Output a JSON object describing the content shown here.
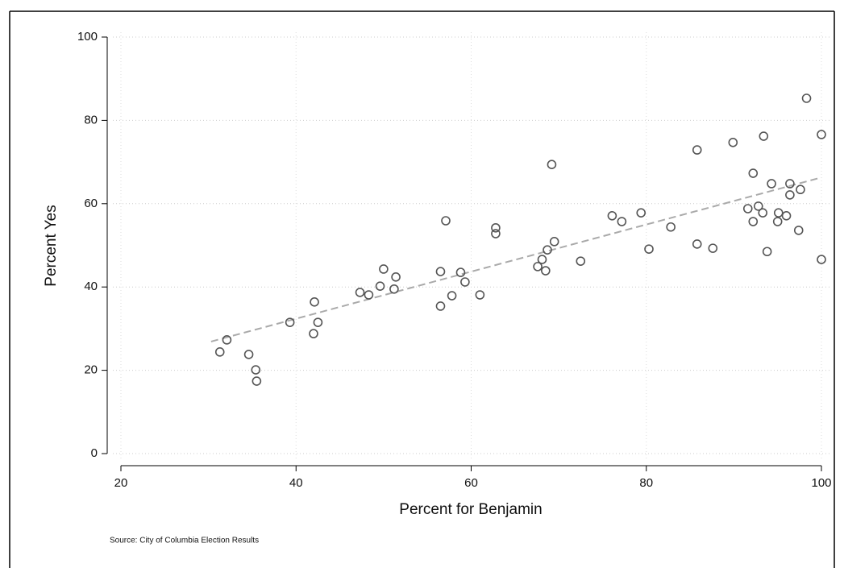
{
  "chart_data": {
    "type": "scatter",
    "x_label": "Percent for Benjamin",
    "y_label": "Percent Yes",
    "source": "Source: City of Columbia Election Results",
    "xlim": [
      20,
      100
    ],
    "ylim": [
      0,
      100
    ],
    "xticks": [
      20,
      40,
      60,
      80,
      100
    ],
    "yticks": [
      0,
      20,
      40,
      60,
      80,
      100
    ],
    "grid": true,
    "color": "#555555",
    "fit_color": "#aaaaaa",
    "fit_line": {
      "x": [
        30.3,
        100
      ],
      "y": [
        26.9,
        66.3
      ]
    },
    "x": [
      31.3,
      32.1,
      34.6,
      35.4,
      35.5,
      39.3,
      42.1,
      42.0,
      42.5,
      47.3,
      48.3,
      49.6,
      50.0,
      51.2,
      51.4,
      56.5,
      56.5,
      57.1,
      57.8,
      58.8,
      59.3,
      61.0,
      62.8,
      62.8,
      67.6,
      68.1,
      68.5,
      68.7,
      69.2,
      69.5,
      72.5,
      76.1,
      77.2,
      79.4,
      80.3,
      82.8,
      85.8,
      85.8,
      87.6,
      89.9,
      91.6,
      92.2,
      92.2,
      92.8,
      93.3,
      93.4,
      93.8,
      94.3,
      95.0,
      95.1,
      96.0,
      96.4,
      96.4,
      97.4,
      97.6,
      98.3,
      100,
      100
    ],
    "y": [
      24.4,
      27.3,
      23.8,
      20.1,
      17.4,
      31.5,
      36.4,
      28.8,
      31.5,
      38.7,
      38.1,
      40.2,
      44.3,
      39.5,
      42.4,
      43.7,
      35.4,
      55.9,
      37.9,
      43.5,
      41.2,
      38.1,
      54.2,
      52.8,
      44.9,
      46.6,
      43.9,
      48.9,
      69.4,
      50.9,
      46.2,
      57.1,
      55.7,
      57.8,
      49.1,
      54.4,
      72.9,
      50.3,
      49.3,
      74.7,
      58.8,
      67.3,
      55.7,
      59.4,
      57.8,
      76.2,
      48.5,
      64.8,
      55.7,
      57.8,
      57.1,
      64.8,
      62.1,
      53.6,
      63.4,
      85.3,
      76.6,
      46.6
    ]
  }
}
